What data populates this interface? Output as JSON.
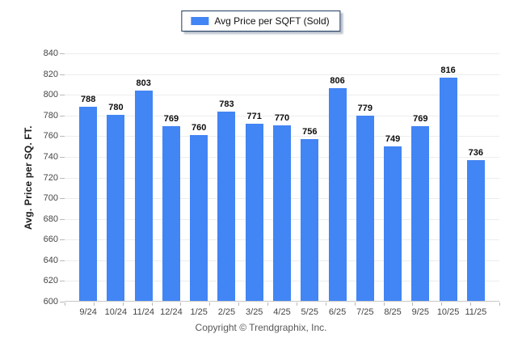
{
  "legend": {
    "label": "Avg Price per SQFT (Sold)",
    "swatch_color": "#4285F4"
  },
  "footer": {
    "copyright": "Copyright © Trendgraphix, Inc."
  },
  "colors": {
    "bar": "#4285F4",
    "gridline": "#ededed",
    "axis_line": "#c8c8c8",
    "tick": "#b9b9b9",
    "tick_label": "#454545",
    "value_label": "#0d0d0d",
    "legend_border": "#1f3a5f"
  },
  "chart_data": {
    "type": "bar",
    "title": "",
    "xlabel": "",
    "ylabel": "Avg. Price per SQ. FT.",
    "categories": [
      "9/24",
      "10/24",
      "11/24",
      "12/24",
      "1/25",
      "2/25",
      "3/25",
      "4/25",
      "5/25",
      "6/25",
      "7/25",
      "8/25",
      "9/25",
      "10/25",
      "11/25"
    ],
    "series": [
      {
        "name": "Avg Price per SQFT (Sold)",
        "values": [
          788,
          780,
          803,
          769,
          760,
          783,
          771,
          770,
          756,
          806,
          779,
          749,
          769,
          816,
          736
        ]
      }
    ],
    "ylim": [
      600,
      840
    ],
    "ytick_step": 20,
    "grid": true,
    "data_labels": true,
    "legend_position": "top-center"
  }
}
